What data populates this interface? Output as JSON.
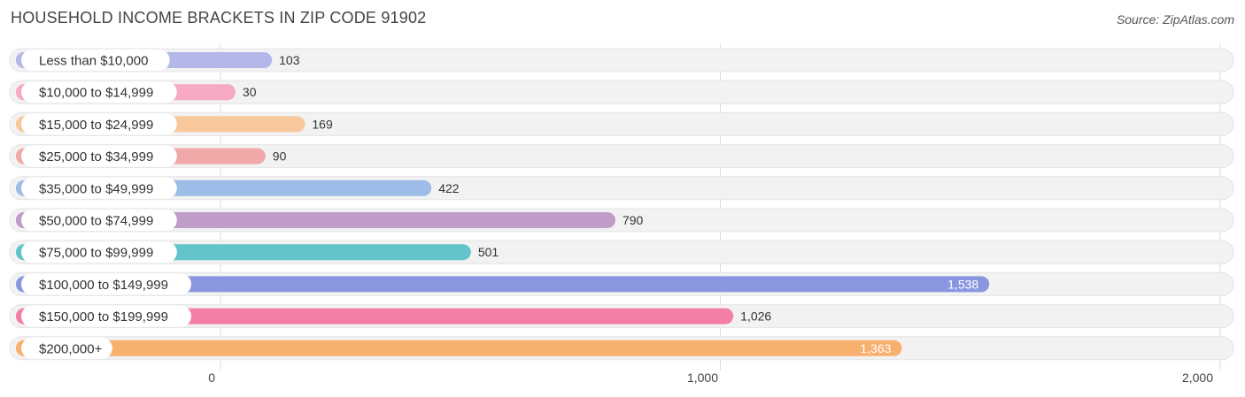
{
  "title": "HOUSEHOLD INCOME BRACKETS IN ZIP CODE 91902",
  "source": "Source: ZipAtlas.com",
  "chart_data": {
    "type": "bar",
    "orientation": "horizontal",
    "title": "HOUSEHOLD INCOME BRACKETS IN ZIP CODE 91902",
    "xlabel": "",
    "ylabel": "",
    "xlim": [
      0,
      2000
    ],
    "x_ticks": [
      0,
      1000,
      2000
    ],
    "x_tick_labels": [
      "0",
      "1,000",
      "2,000"
    ],
    "grid": true,
    "categories": [
      "Less than $10,000",
      "$10,000 to $14,999",
      "$15,000 to $24,999",
      "$25,000 to $34,999",
      "$35,000 to $49,999",
      "$50,000 to $74,999",
      "$75,000 to $99,999",
      "$100,000 to $149,999",
      "$150,000 to $199,999",
      "$200,000+"
    ],
    "values": [
      103,
      30,
      169,
      90,
      422,
      790,
      501,
      1538,
      1026,
      1363
    ],
    "value_labels": [
      "103",
      "30",
      "169",
      "90",
      "422",
      "790",
      "501",
      "1,538",
      "1,026",
      "1,363"
    ],
    "colors": [
      "#b3b8e8",
      "#f7a8c4",
      "#f8c89c",
      "#f0a8a8",
      "#9dbde8",
      "#c09cc8",
      "#62c4c8",
      "#8a96e0",
      "#f47ea6",
      "#f8b06e"
    ]
  }
}
